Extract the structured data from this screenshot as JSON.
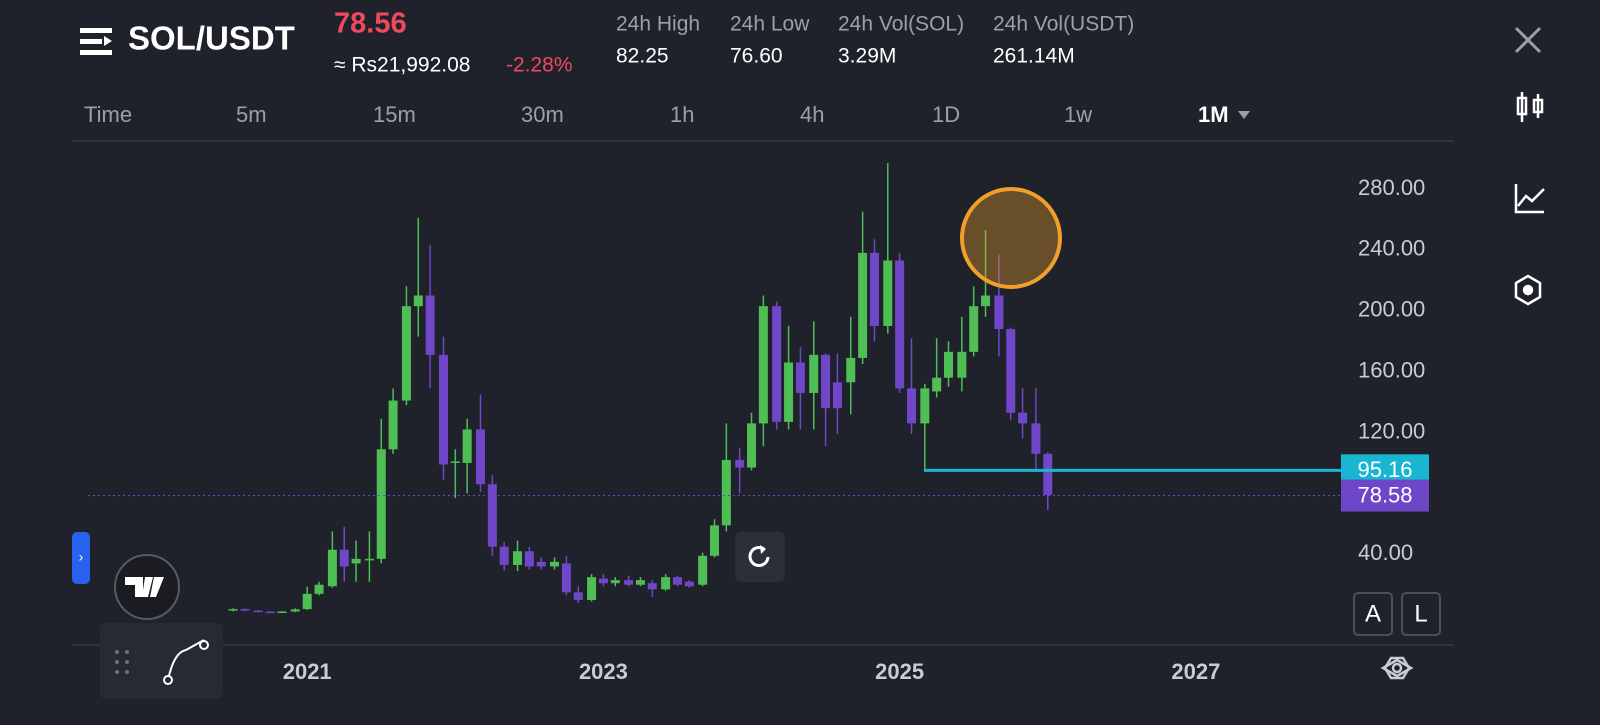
{
  "header": {
    "symbol": "SOL/USDT",
    "price": "78.56",
    "fiat_price": "≈ Rs21,992.08",
    "change": "-2.28%",
    "stats": [
      {
        "label": "24h High",
        "value": "82.25"
      },
      {
        "label": "24h Low",
        "value": "76.60"
      },
      {
        "label": "24h Vol(SOL)",
        "value": "3.29M"
      },
      {
        "label": "24h Vol(USDT)",
        "value": "261.14M"
      }
    ]
  },
  "timeframes": [
    "Time",
    "5m",
    "15m",
    "30m",
    "1h",
    "4h",
    "1D",
    "1w",
    "1M"
  ],
  "scale_buttons": [
    "A",
    "L"
  ],
  "chart_data": {
    "type": "candlestick",
    "up_color": "#4fbf55",
    "down_color": "#7047c9",
    "x": [
      2020.5,
      2020.58,
      2020.67,
      2020.75,
      2020.83,
      2020.92,
      2021,
      2021.08,
      2021.17,
      2021.25,
      2021.33,
      2021.42,
      2021.5,
      2021.58,
      2021.67,
      2021.75,
      2021.83,
      2021.92,
      2022,
      2022.08,
      2022.17,
      2022.25,
      2022.33,
      2022.42,
      2022.5,
      2022.58,
      2022.67,
      2022.75,
      2022.83,
      2022.92,
      2023,
      2023.08,
      2023.17,
      2023.25,
      2023.33,
      2023.42,
      2023.5,
      2023.58,
      2023.67,
      2023.75,
      2023.83,
      2023.92,
      2024,
      2024.08,
      2024.17,
      2024.25,
      2024.33,
      2024.42,
      2024.5,
      2024.58,
      2024.67,
      2024.75,
      2024.83,
      2024.92,
      2025,
      2025.08,
      2025.17,
      2025.25,
      2025.33,
      2025.42,
      2025.5,
      2025.58,
      2025.67,
      2025.75,
      2025.83,
      2025.92,
      2026
    ],
    "open": [
      3.2,
      4,
      3,
      2.3,
      2.1,
      2.4,
      4,
      14,
      19,
      43,
      34,
      36,
      37,
      109,
      141,
      203,
      210,
      171,
      100,
      100,
      122,
      86,
      45,
      33,
      42,
      35,
      32,
      34,
      15,
      10,
      24,
      21,
      23,
      20,
      21,
      17,
      25,
      22,
      20,
      39,
      59,
      102,
      97,
      126,
      203,
      127,
      166,
      146,
      171,
      153,
      153,
      169,
      238,
      190,
      233,
      149,
      126,
      147,
      156,
      156,
      173,
      203,
      210,
      188,
      133,
      126,
      106
    ],
    "high": [
      4.5,
      4.5,
      3.3,
      2.6,
      2.6,
      4.5,
      18.6,
      22,
      55,
      58,
      49,
      55,
      129,
      149,
      216,
      261,
      243,
      183,
      109,
      129,
      145,
      92,
      48,
      49,
      45,
      38,
      38,
      39,
      19,
      27,
      27,
      25,
      26,
      25,
      23,
      27,
      26,
      23,
      41,
      63,
      126,
      110,
      133,
      210,
      206,
      190,
      176,
      193,
      172,
      172,
      196,
      265,
      247,
      297,
      238,
      182,
      152,
      182,
      180,
      196,
      216,
      253,
      237,
      189,
      149,
      149,
      107
    ],
    "low": [
      2.5,
      2.8,
      2,
      1.8,
      1.9,
      2,
      3.5,
      13,
      18,
      22,
      22,
      22,
      34,
      106,
      138,
      183,
      149,
      89,
      77,
      80,
      81,
      39,
      29,
      29,
      30,
      30,
      30,
      13,
      8,
      9,
      19,
      19,
      19,
      19,
      12,
      16,
      19,
      18,
      19,
      38,
      55,
      80,
      95,
      111,
      122,
      122,
      122,
      122,
      111,
      119,
      132,
      165,
      180,
      185,
      146,
      119,
      96,
      143,
      150,
      147,
      170,
      196,
      170,
      128,
      116,
      96,
      69
    ],
    "close": [
      4,
      3,
      2.3,
      2.1,
      2.4,
      3.8,
      14,
      20,
      43,
      32,
      37,
      37,
      109,
      141,
      203,
      210,
      171,
      99,
      101,
      122,
      86,
      45,
      33,
      42,
      32,
      32,
      35,
      15,
      10,
      25,
      21,
      23,
      20,
      23,
      17,
      25,
      20,
      19,
      39,
      59,
      102,
      97,
      126,
      203,
      127,
      166,
      146,
      171,
      136,
      136,
      169,
      238,
      190,
      233,
      149,
      126,
      149,
      156,
      173,
      173,
      203,
      210,
      188,
      133,
      126,
      106,
      79
    ],
    "xlim": [
      2019.52,
      2027.98
    ],
    "xticks": [
      2021,
      2023,
      2025,
      2027
    ],
    "ylim": [
      -19.6,
      310.2
    ],
    "yticks": [
      {
        "value": 40,
        "label": "40.00"
      },
      {
        "value": 120,
        "label": "120.00"
      },
      {
        "value": 160,
        "label": "160.00"
      },
      {
        "value": 200,
        "label": "200.00"
      },
      {
        "value": 240,
        "label": "240.00"
      },
      {
        "value": 280,
        "label": "280.00"
      }
    ],
    "price_lines": [
      {
        "value": 95.16,
        "label": "95.16",
        "color": "#19b6d2"
      },
      {
        "value": 78.58,
        "label": "78.58",
        "color": "#6e47c8"
      }
    ]
  }
}
